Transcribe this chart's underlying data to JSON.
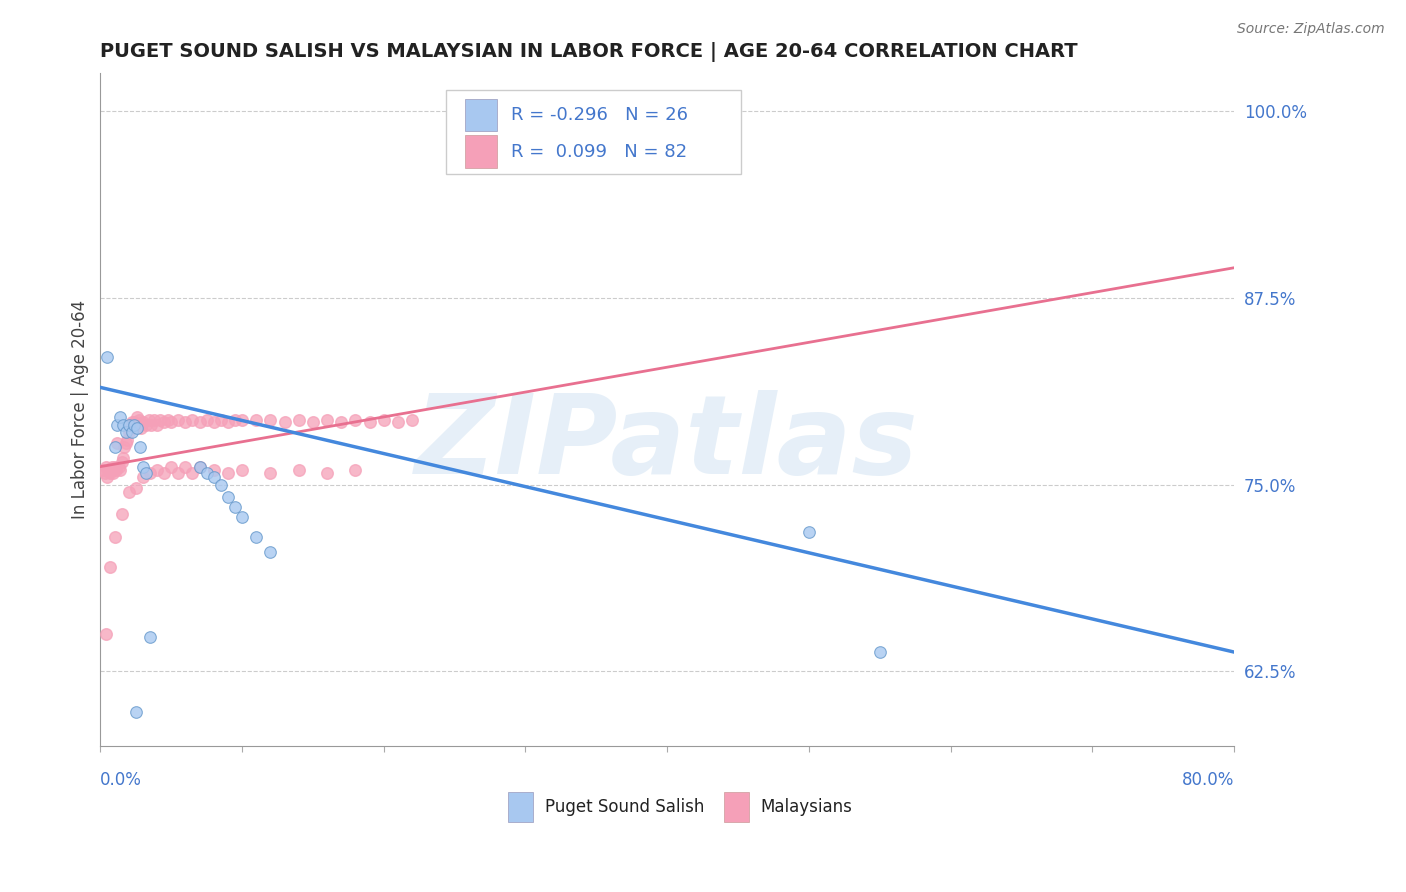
{
  "title": "PUGET SOUND SALISH VS MALAYSIAN IN LABOR FORCE | AGE 20-64 CORRELATION CHART",
  "source": "Source: ZipAtlas.com",
  "ylabel": "In Labor Force | Age 20-64",
  "xlim": [
    0.0,
    0.8
  ],
  "ylim": [
    0.575,
    1.025
  ],
  "yticks": [
    0.625,
    0.75,
    0.875,
    1.0
  ],
  "ytick_labels": [
    "62.5%",
    "75.0%",
    "87.5%",
    "100.0%"
  ],
  "watermark": "ZIPatlas",
  "series1_color": "#a8c8f0",
  "series2_color": "#f5a0b8",
  "trend1_color": "#4488dd",
  "trend2_color": "#e87090",
  "legend_text_color": "#4477cc",
  "background_color": "#ffffff",
  "grid_color": "#cccccc",
  "blue_x": [
    0.005,
    0.01,
    0.012,
    0.014,
    0.016,
    0.018,
    0.02,
    0.022,
    0.024,
    0.026,
    0.028,
    0.03,
    0.032,
    0.07,
    0.075,
    0.08,
    0.085,
    0.09,
    0.095,
    0.1,
    0.11,
    0.12,
    0.5,
    0.55,
    0.025,
    0.035
  ],
  "blue_y": [
    0.835,
    0.775,
    0.79,
    0.795,
    0.79,
    0.785,
    0.79,
    0.785,
    0.79,
    0.788,
    0.775,
    0.762,
    0.758,
    0.762,
    0.758,
    0.755,
    0.75,
    0.742,
    0.735,
    0.728,
    0.715,
    0.705,
    0.718,
    0.638,
    0.598,
    0.648
  ],
  "pink_x": [
    0.002,
    0.003,
    0.004,
    0.005,
    0.006,
    0.007,
    0.008,
    0.009,
    0.01,
    0.011,
    0.012,
    0.013,
    0.014,
    0.015,
    0.016,
    0.017,
    0.018,
    0.019,
    0.02,
    0.021,
    0.022,
    0.023,
    0.024,
    0.025,
    0.026,
    0.027,
    0.028,
    0.029,
    0.03,
    0.032,
    0.034,
    0.036,
    0.038,
    0.04,
    0.042,
    0.045,
    0.048,
    0.05,
    0.055,
    0.06,
    0.065,
    0.07,
    0.075,
    0.08,
    0.085,
    0.09,
    0.095,
    0.1,
    0.11,
    0.12,
    0.13,
    0.14,
    0.15,
    0.16,
    0.17,
    0.18,
    0.19,
    0.2,
    0.21,
    0.22,
    0.004,
    0.007,
    0.01,
    0.015,
    0.02,
    0.025,
    0.03,
    0.035,
    0.04,
    0.045,
    0.05,
    0.055,
    0.06,
    0.065,
    0.07,
    0.08,
    0.09,
    0.1,
    0.12,
    0.14,
    0.16,
    0.18
  ],
  "pink_y": [
    0.76,
    0.758,
    0.762,
    0.755,
    0.76,
    0.758,
    0.762,
    0.758,
    0.762,
    0.76,
    0.778,
    0.762,
    0.76,
    0.765,
    0.768,
    0.775,
    0.778,
    0.78,
    0.785,
    0.788,
    0.792,
    0.79,
    0.792,
    0.79,
    0.795,
    0.793,
    0.79,
    0.788,
    0.792,
    0.79,
    0.793,
    0.79,
    0.793,
    0.79,
    0.793,
    0.792,
    0.793,
    0.792,
    0.793,
    0.792,
    0.793,
    0.792,
    0.793,
    0.792,
    0.793,
    0.792,
    0.793,
    0.793,
    0.793,
    0.793,
    0.792,
    0.793,
    0.792,
    0.793,
    0.792,
    0.793,
    0.792,
    0.793,
    0.792,
    0.793,
    0.65,
    0.695,
    0.715,
    0.73,
    0.745,
    0.748,
    0.755,
    0.758,
    0.76,
    0.758,
    0.762,
    0.758,
    0.762,
    0.758,
    0.762,
    0.76,
    0.758,
    0.76,
    0.758,
    0.76,
    0.758,
    0.76
  ],
  "trend1_x0": 0.0,
  "trend1_x1": 0.8,
  "trend1_y0": 0.815,
  "trend1_y1": 0.638,
  "trend2_x0": 0.0,
  "trend2_x1": 0.8,
  "trend2_y0": 0.762,
  "trend2_y1": 0.895
}
